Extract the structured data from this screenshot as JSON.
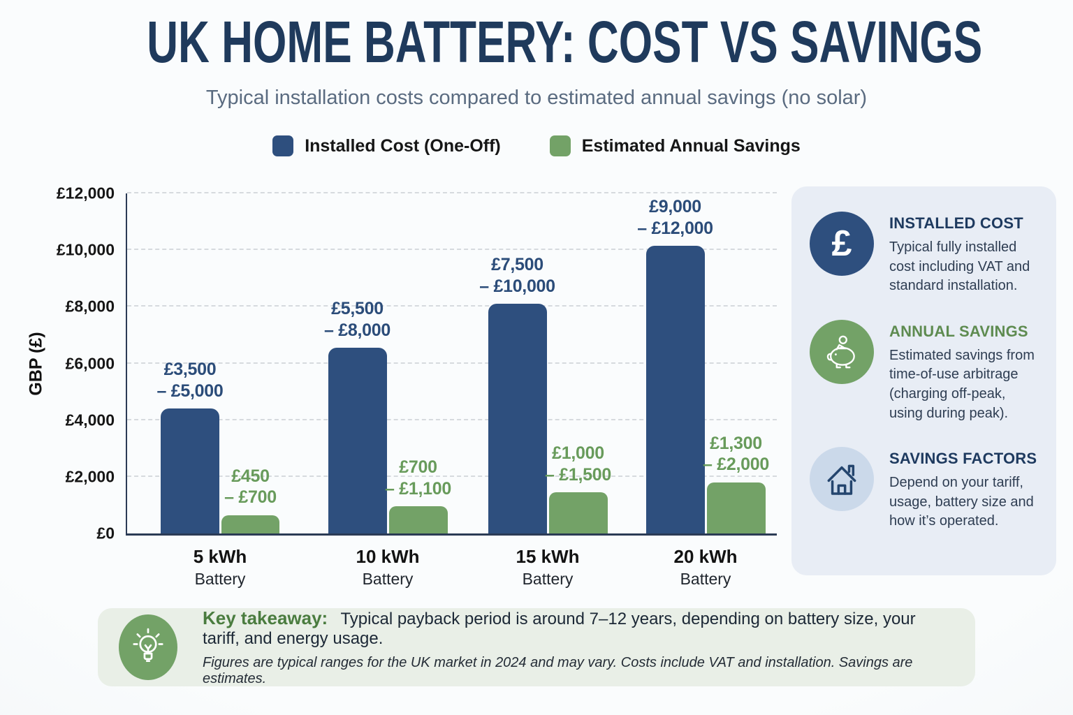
{
  "title": "UK HOME BATTERY: COST VS SAVINGS",
  "subtitle": "Typical installation costs compared to estimated annual savings (no solar)",
  "colors": {
    "cost_blue": "#2e4f7e",
    "savings_green": "#73a267",
    "navy_text": "#1f3a5c",
    "green_text": "#689b5b",
    "sidebar_bg": "#e8edf5",
    "takeaway_bg": "#e9efe7",
    "house_circle": "#cbd9ea"
  },
  "chart_data": {
    "type": "bar",
    "title": "UK Home Battery: Cost vs Savings",
    "categories": [
      "5 kWh",
      "10 kWh",
      "15 kWh",
      "20 kWh"
    ],
    "category_sublabel": "Battery",
    "ylabel": "GBP (£)",
    "xlabel": "",
    "ylim": [
      0,
      12000
    ],
    "yticks": [
      "£0",
      "£2,000",
      "£4,000",
      "£6,000",
      "£8,000",
      "£10,000",
      "£12,000"
    ],
    "grid": "dashed horizontal",
    "legend_position": "top",
    "series": [
      {
        "name": "Installed Cost (One-Off)",
        "color": "#2e4f7e",
        "bars": [
          {
            "value": 4400,
            "label_line1": "£3,500",
            "label_line2": "– £5,000"
          },
          {
            "value": 6550,
            "label_line1": "£5,500",
            "label_line2": "– £8,000"
          },
          {
            "value": 8100,
            "label_line1": "£7,500",
            "label_line2": "– £10,000"
          },
          {
            "value": 10150,
            "label_line1": "£9,000",
            "label_line2": "– £12,000"
          }
        ]
      },
      {
        "name": "Estimated Annual Savings",
        "color": "#73a267",
        "bars": [
          {
            "value": 650,
            "label_line1": "£450",
            "label_line2": "– £700"
          },
          {
            "value": 950,
            "label_line1": "£700",
            "label_line2": "– £1,100"
          },
          {
            "value": 1450,
            "label_line1": "£1,000",
            "label_line2": "– £1,500"
          },
          {
            "value": 1800,
            "label_line1": "£1,300",
            "label_line2": "– £2,000"
          }
        ]
      }
    ]
  },
  "sidebar": {
    "items": [
      {
        "icon": "pound-icon",
        "icon_glyph": "£",
        "circle_color": "#2e4f7e",
        "heading": "INSTALLED COST",
        "heading_color": "#1e3a5f",
        "body": "Typical fully installed cost including VAT and standard installation."
      },
      {
        "icon": "piggy-bank-icon",
        "circle_color": "#73a267",
        "heading": "ANNUAL SAVINGS",
        "heading_color": "#5e8b50",
        "body": "Estimated savings from time-of-use arbitrage (charging off-peak, using during peak)."
      },
      {
        "icon": "house-icon",
        "circle_color": "#cbd9ea",
        "heading": "SAVINGS FACTORS",
        "heading_color": "#1e3a5f",
        "body": "Depend on your tariff, usage, battery size and how it’s operated."
      }
    ]
  },
  "takeaway": {
    "icon": "lightbulb-icon",
    "heading": "Key takeaway:",
    "text": "Typical payback period is around 7–12 years, depending on battery size, your tariff, and energy usage.",
    "footnote": "Figures are typical ranges for the UK market in 2024 and may vary. Costs include VAT and installation. Savings are estimates."
  }
}
